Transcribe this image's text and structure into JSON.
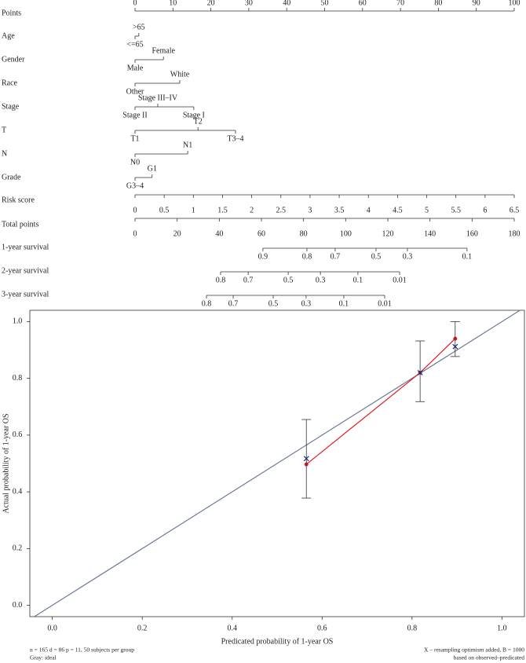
{
  "chart_data": [
    {
      "type": "nomogram",
      "points_axis": {
        "label": "Points",
        "xlim": [
          0,
          100
        ],
        "ticks": [
          0,
          10,
          20,
          30,
          40,
          50,
          60,
          70,
          80,
          90,
          100
        ]
      },
      "variables": [
        {
          "label": "Age",
          "levels": [
            {
              "label": "<=65",
              "points": 0
            },
            {
              "label": ">65",
              "points": 1
            }
          ]
        },
        {
          "label": "Gender",
          "levels": [
            {
              "label": "Male",
              "points": 0
            },
            {
              "label": "Female",
              "points": 7.5
            }
          ]
        },
        {
          "label": "Race",
          "levels": [
            {
              "label": "Other",
              "points": 0
            },
            {
              "label": "White",
              "points": 11.8
            }
          ]
        },
        {
          "label": "Stage",
          "levels": [
            {
              "label": "Stage II",
              "points": 0
            },
            {
              "label": "Stage III–IV",
              "points": 6
            },
            {
              "label": "Stage I",
              "points": 15.5
            }
          ]
        },
        {
          "label": "T",
          "levels": [
            {
              "label": "T1",
              "points": 0
            },
            {
              "label": "T2",
              "points": 16.6
            },
            {
              "label": "T3–4",
              "points": 26.5
            }
          ]
        },
        {
          "label": "N",
          "levels": [
            {
              "label": "N0",
              "points": 0
            },
            {
              "label": "N1",
              "points": 13.9
            }
          ]
        },
        {
          "label": "Grade",
          "levels": [
            {
              "label": "G3–4",
              "points": 0
            },
            {
              "label": "G1",
              "points": 4.5
            }
          ]
        }
      ],
      "risk_axis": {
        "label": "Risk score",
        "xlim": [
          0,
          6.5
        ],
        "ticks": [
          0,
          0.5,
          1,
          1.5,
          2,
          2.5,
          3,
          3.5,
          4,
          4.5,
          5,
          5.5,
          6,
          6.5
        ]
      },
      "total_axis": {
        "label": "Total points",
        "xlim": [
          0,
          180
        ],
        "ticks": [
          0,
          20,
          40,
          60,
          80,
          100,
          120,
          140,
          160,
          180
        ]
      },
      "survival_axes": [
        {
          "label": "1-year survival",
          "ticks": [
            {
              "value": 60.7,
              "label": "0.9"
            },
            {
              "value": 81.6,
              "label": "0.8"
            },
            {
              "value": 95,
              "label": "0.7"
            },
            {
              "value": 114.4,
              "label": "0.5"
            },
            {
              "value": 129.3,
              "label": "0.3"
            },
            {
              "value": 157.6,
              "label": "0.1"
            }
          ]
        },
        {
          "label": "2-year survival",
          "ticks": [
            {
              "value": 40.6,
              "label": "0.8"
            },
            {
              "value": 53.7,
              "label": "0.7"
            },
            {
              "value": 72.7,
              "label": "0.5"
            },
            {
              "value": 88,
              "label": "0.3"
            },
            {
              "value": 105.8,
              "label": "0.1"
            },
            {
              "value": 125.6,
              "label": "0.01"
            }
          ]
        },
        {
          "label": "3-year survival",
          "ticks": [
            {
              "value": 33.9,
              "label": "0.8"
            },
            {
              "value": 46.6,
              "label": "0.7"
            },
            {
              "value": 65.6,
              "label": "0.5"
            },
            {
              "value": 81.2,
              "label": "0.3"
            },
            {
              "value": 99.1,
              "label": "0.1"
            },
            {
              "value": 118.5,
              "label": "0.01"
            }
          ]
        }
      ]
    },
    {
      "type": "calibration",
      "xlabel": "Predicated probability of 1-year OS",
      "ylabel": "Actual probability of 1-year OS",
      "xlim": [
        -0.05,
        1.05
      ],
      "ylim": [
        -0.04,
        1.04
      ],
      "xticks": [
        {
          "value": 0,
          "label": "0.0"
        },
        0.2,
        0.4,
        0.6,
        0.8,
        {
          "value": 1,
          "label": "1.0"
        }
      ],
      "yticks": [
        {
          "value": 0,
          "label": "0.0"
        },
        0.2,
        0.4,
        0.6,
        0.8,
        {
          "value": 1,
          "label": "1.0"
        }
      ],
      "ideal_color": "#6b7a99",
      "x": [
        0.565,
        0.818,
        0.896
      ],
      "series": [
        {
          "color": "#e41a1c",
          "marker": "dot",
          "line": true,
          "values": [
            0.497,
            0.82,
            0.94
          ]
        },
        {
          "color": "#1a2a80",
          "marker": "x",
          "line": false,
          "values": [
            0.517,
            0.82,
            0.912
          ],
          "low": [
            0.378,
            0.718,
            0.877
          ],
          "high": [
            0.655,
            0.932,
            1.0
          ]
        }
      ],
      "notes_left": [
        "n = 165 d = 86 p = 11, 50 subjects per group",
        "Gray: ideal"
      ],
      "notes_right": [
        "X – resampling optimism added, B = 1000",
        "based on observed–predicated"
      ]
    }
  ]
}
